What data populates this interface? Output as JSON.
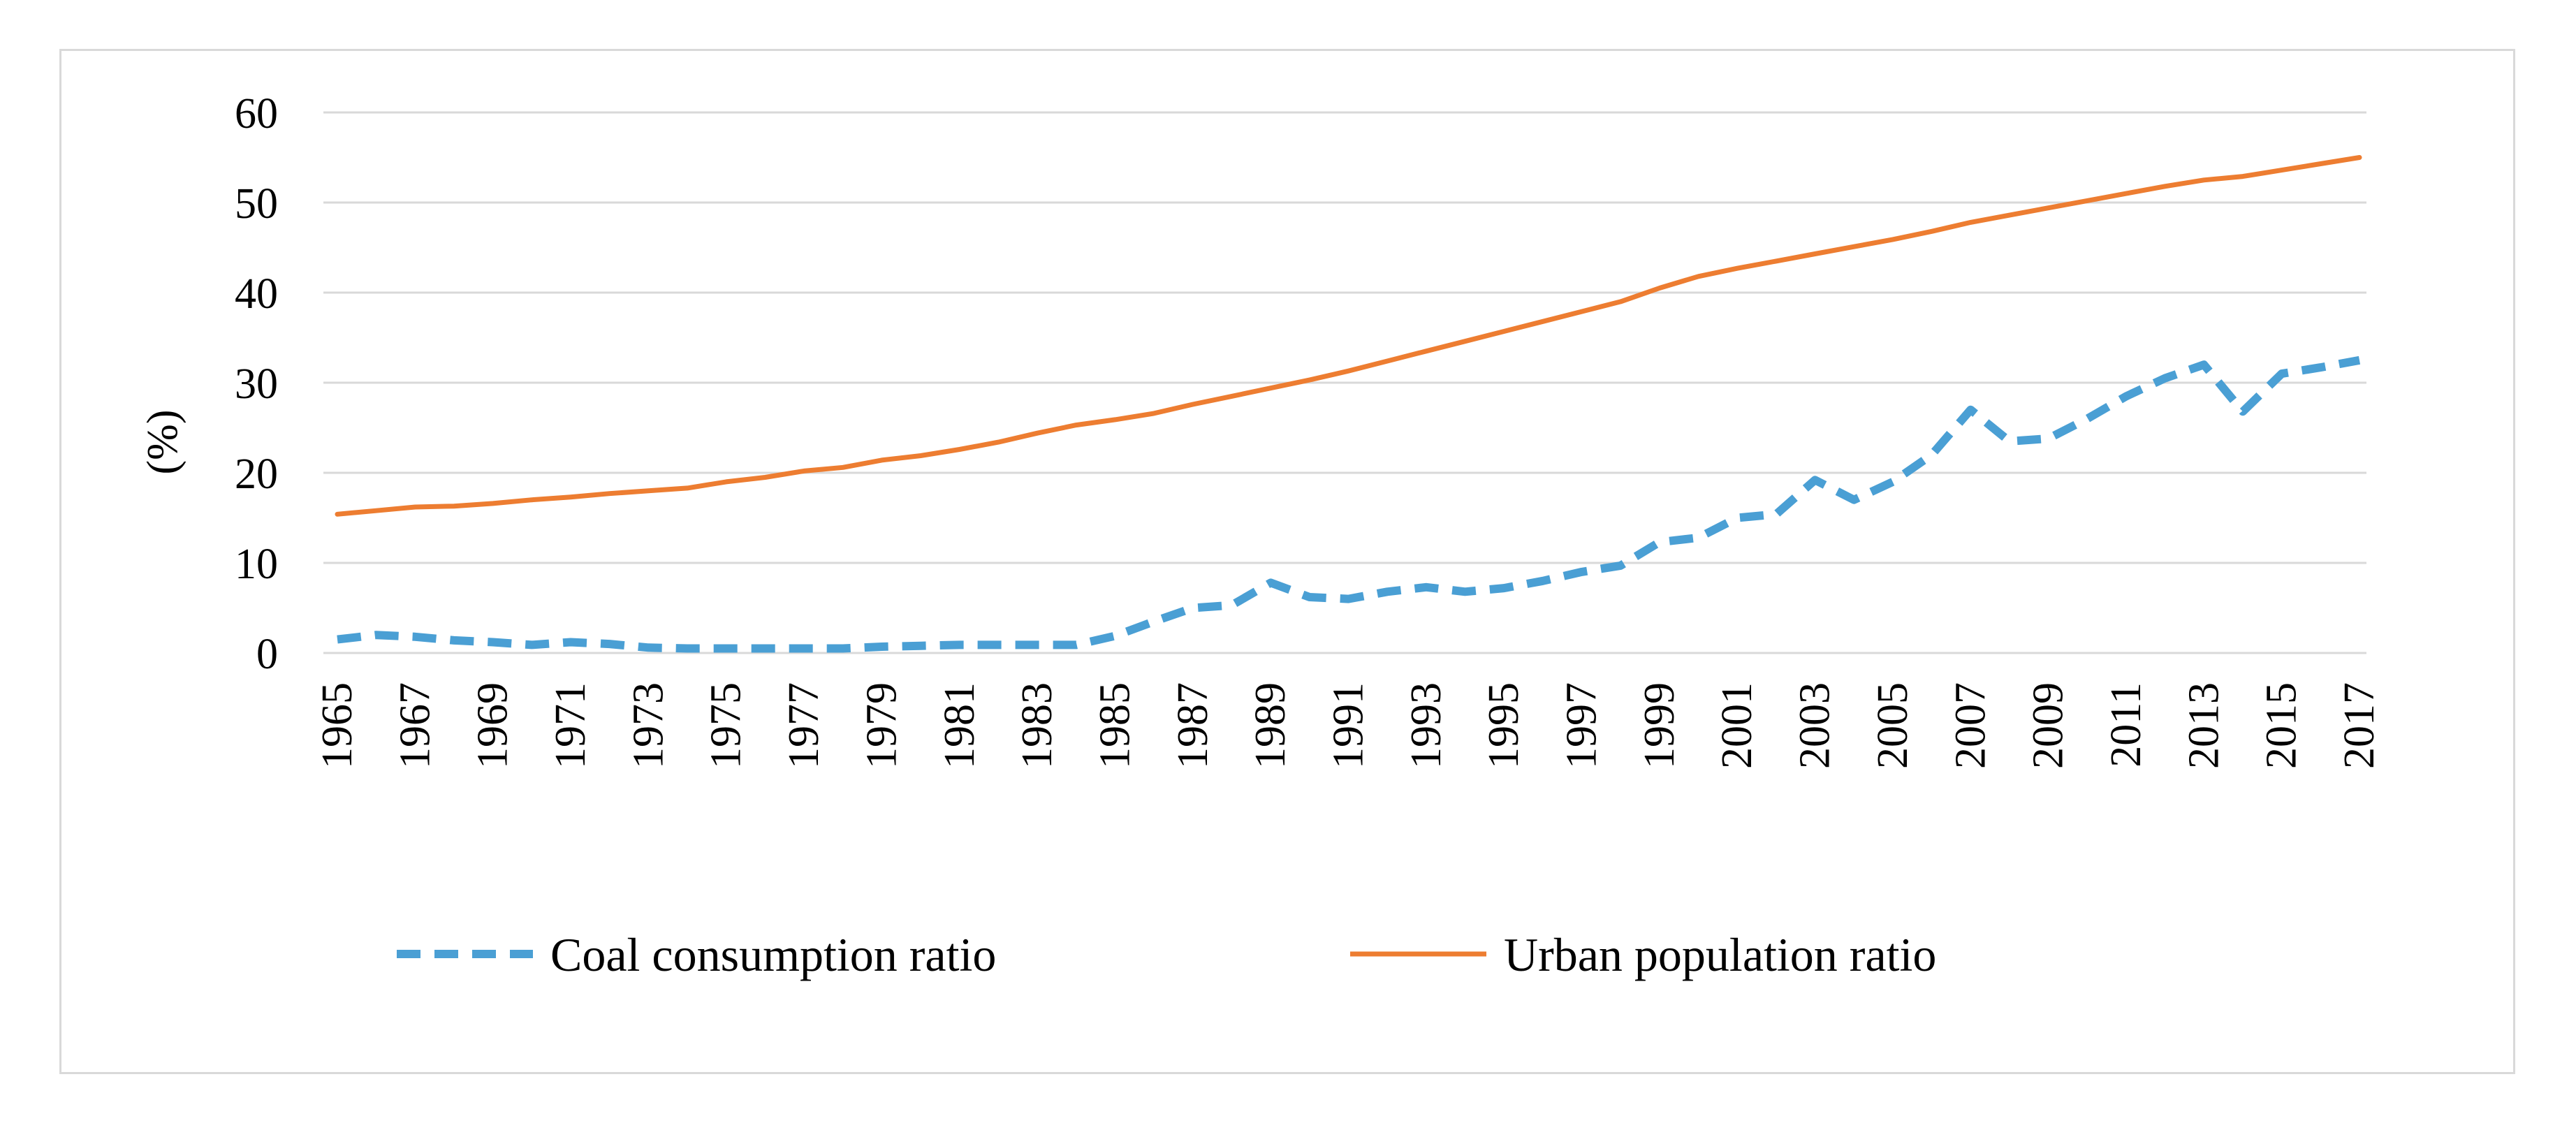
{
  "chart_data": {
    "type": "line",
    "title": "",
    "xlabel": "",
    "ylabel": "(%)",
    "ylim": [
      0,
      60
    ],
    "yticks": [
      0,
      10,
      20,
      30,
      40,
      50,
      60
    ],
    "grid": true,
    "legend_position": "bottom",
    "x": [
      1965,
      1966,
      1967,
      1968,
      1969,
      1970,
      1971,
      1972,
      1973,
      1974,
      1975,
      1976,
      1977,
      1978,
      1979,
      1980,
      1981,
      1982,
      1983,
      1984,
      1985,
      1986,
      1987,
      1988,
      1989,
      1990,
      1991,
      1992,
      1993,
      1994,
      1995,
      1996,
      1997,
      1998,
      1999,
      2000,
      2001,
      2002,
      2003,
      2004,
      2005,
      2006,
      2007,
      2008,
      2009,
      2010,
      2011,
      2012,
      2013,
      2014,
      2015,
      2016,
      2017
    ],
    "x_tick_labels": [
      "1965",
      "1967",
      "1969",
      "1971",
      "1973",
      "1975",
      "1977",
      "1979",
      "1981",
      "1983",
      "1985",
      "1987",
      "1989",
      "1991",
      "1993",
      "1995",
      "1997",
      "1999",
      "2001",
      "2003",
      "2005",
      "2007",
      "2009",
      "2011",
      "2013",
      "2015",
      "2017"
    ],
    "series": [
      {
        "name": "Coal consumption ratio",
        "color": "#4a9fd4",
        "style": "dashed",
        "values": [
          1.5,
          2.0,
          1.8,
          1.4,
          1.2,
          0.9,
          1.2,
          1.0,
          0.6,
          0.5,
          0.5,
          0.5,
          0.5,
          0.5,
          0.7,
          0.8,
          0.9,
          0.9,
          0.9,
          0.9,
          1.9,
          3.5,
          5.0,
          5.3,
          7.8,
          6.2,
          6.0,
          6.8,
          7.3,
          6.8,
          7.2,
          8.0,
          9.0,
          9.7,
          12.3,
          12.8,
          15.0,
          15.4,
          19.2,
          17.0,
          19.0,
          22.0,
          27.0,
          23.5,
          23.8,
          26.0,
          28.5,
          30.5,
          32.0,
          26.8,
          31.0,
          31.7,
          32.5
        ]
      },
      {
        "name": "Urban population ratio",
        "color": "#ed7d31",
        "style": "solid",
        "values": [
          15.4,
          15.8,
          16.2,
          16.3,
          16.6,
          17.0,
          17.3,
          17.7,
          18.0,
          18.3,
          19.0,
          19.5,
          20.2,
          20.6,
          21.4,
          21.9,
          22.6,
          23.4,
          24.4,
          25.3,
          25.9,
          26.6,
          27.6,
          28.5,
          29.4,
          30.3,
          31.3,
          32.4,
          33.5,
          34.6,
          35.7,
          36.8,
          37.9,
          39.0,
          40.5,
          41.8,
          42.7,
          43.5,
          44.3,
          45.1,
          45.9,
          46.8,
          47.8,
          48.6,
          49.4,
          50.2,
          51.0,
          51.8,
          52.5,
          52.9,
          53.6,
          54.3,
          55.0
        ]
      }
    ]
  }
}
